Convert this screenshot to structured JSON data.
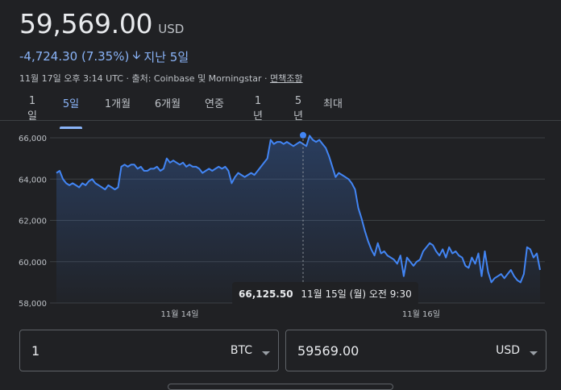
{
  "quote": {
    "price": "59,569.00",
    "currency": "USD",
    "change": "-4,724.30 (7.35%)",
    "period": "지난 5일",
    "timestamp": "11월 17일 오후 3:14 UTC",
    "source": "출처: Coinbase 및 Morningstar",
    "disclaimer_link": "면책조항"
  },
  "tabs": [
    {
      "label": "1일",
      "active": false
    },
    {
      "label": "5일",
      "active": true
    },
    {
      "label": "1개월",
      "active": false
    },
    {
      "label": "6개월",
      "active": false
    },
    {
      "label": "연중",
      "active": false
    },
    {
      "label": "1년",
      "active": false
    },
    {
      "label": "5년",
      "active": false
    },
    {
      "label": "최대",
      "active": false
    }
  ],
  "tooltip": {
    "value": "66,125.50",
    "datetime": "11월 15일 (월) 오전 9:30"
  },
  "converter": {
    "from_value": "1",
    "from_unit": "BTC",
    "to_value": "59569.00",
    "to_unit": "USD"
  },
  "colors": {
    "line": "#4285f4",
    "accent": "#8ab4f8",
    "background": "#202124"
  },
  "chart_data": {
    "type": "area",
    "y_ticks": [
      "66,000",
      "64,000",
      "62,000",
      "60,000",
      "58,000"
    ],
    "y_tick_values": [
      66000,
      64000,
      62000,
      60000,
      58000
    ],
    "x_ticks": [
      {
        "label": "11월 14일",
        "t": 0.255
      },
      {
        "label": "11월 16일",
        "t": 0.754
      }
    ],
    "ylim": [
      58000,
      66000
    ],
    "highlight_t": 0.51,
    "highlight_value": 66125.5,
    "values": [
      64300,
      64400,
      64000,
      63800,
      63700,
      63800,
      63700,
      63600,
      63800,
      63700,
      63900,
      64000,
      63800,
      63700,
      63600,
      63500,
      63700,
      63600,
      63500,
      63600,
      64600,
      64700,
      64600,
      64700,
      64700,
      64500,
      64600,
      64400,
      64400,
      64500,
      64500,
      64600,
      64400,
      64500,
      65000,
      64800,
      64900,
      64800,
      64700,
      64800,
      64600,
      64700,
      64600,
      64600,
      64500,
      64300,
      64400,
      64500,
      64400,
      64500,
      64600,
      64500,
      64600,
      64400,
      63800,
      64100,
      64300,
      64200,
      64100,
      64200,
      64300,
      64200,
      64400,
      64600,
      64800,
      65000,
      65900,
      65700,
      65800,
      65800,
      65700,
      65800,
      65700,
      65600,
      65700,
      65800,
      65700,
      65600,
      66100,
      65900,
      65800,
      65900,
      65700,
      65500,
      65100,
      64600,
      64100,
      64300,
      64200,
      64100,
      64000,
      63800,
      63500,
      62600,
      62100,
      61500,
      61000,
      60600,
      60300,
      60900,
      60400,
      60500,
      60300,
      60200,
      60100,
      59900,
      60300,
      59300,
      60200,
      60000,
      59800,
      60000,
      60100,
      60500,
      60700,
      60900,
      60800,
      60500,
      60300,
      60600,
      60200,
      60700,
      60400,
      60500,
      60300,
      60200,
      59800,
      59700,
      60200,
      59900,
      60400,
      59300,
      60500,
      59500,
      59000,
      59200,
      59300,
      59400,
      59200,
      59400,
      59600,
      59300,
      59100,
      59000,
      59400,
      60700,
      60600,
      60200,
      60400,
      59600
    ],
    "title": "",
    "xlabel": "",
    "ylabel": ""
  }
}
